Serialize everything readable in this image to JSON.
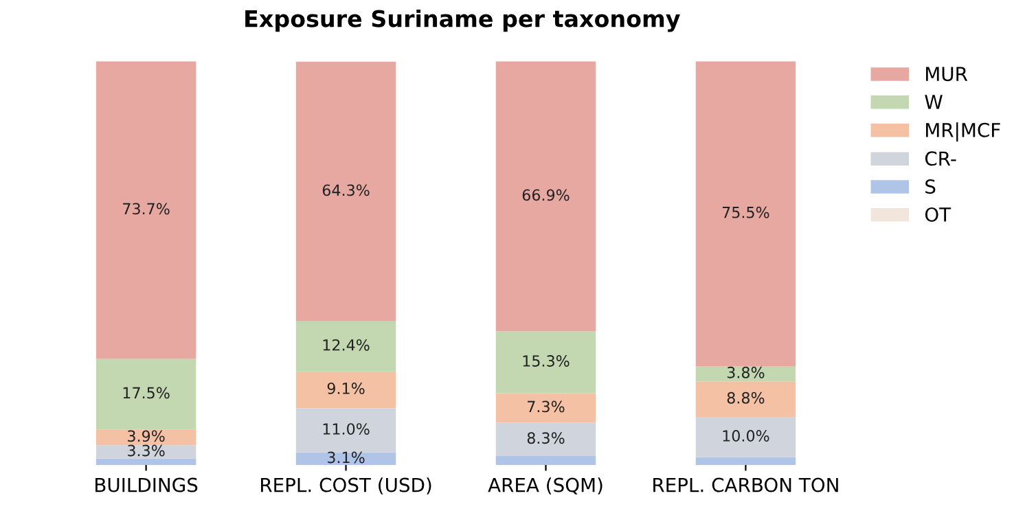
{
  "chart_data": {
    "type": "bar",
    "title": "Exposure Suriname per taxonomy",
    "stacked": true,
    "legend": "top right",
    "grid": false,
    "categories": [
      "BUILDINGS",
      "REPL. COST (USD)",
      "AREA (SQM)",
      "REPL. CARBON TON"
    ],
    "series": [
      {
        "name": "OT",
        "color": "#f2e6dc",
        "values": [
          0,
          0,
          0,
          0
        ],
        "value_labels": [
          null,
          null,
          null,
          null
        ]
      },
      {
        "name": "S",
        "color": "#b0c4e8",
        "values": [
          1.6,
          3.1,
          2.2,
          1.9
        ],
        "value_labels": [
          null,
          "3.1%",
          null,
          null
        ]
      },
      {
        "name": "CR-",
        "color": "#d0d4dc",
        "values": [
          3.3,
          11.0,
          8.3,
          10.0
        ],
        "value_labels": [
          "3.3%",
          "11.0%",
          "8.3%",
          "10.0%"
        ]
      },
      {
        "name": "MR|MCF",
        "color": "#f4c1a4",
        "values": [
          3.9,
          9.1,
          7.3,
          8.8
        ],
        "value_labels": [
          "3.9%",
          "9.1%",
          "7.3%",
          "8.8%"
        ]
      },
      {
        "name": "W",
        "color": "#c3d8b0",
        "values": [
          17.5,
          12.4,
          15.3,
          3.8
        ],
        "value_labels": [
          "17.5%",
          "12.4%",
          "15.3%",
          "3.8%"
        ]
      },
      {
        "name": "MUR",
        "color": "#e8a8a2",
        "values": [
          73.7,
          64.3,
          66.9,
          75.5
        ],
        "value_labels": [
          "73.7%",
          "64.3%",
          "66.9%",
          "75.5%"
        ]
      }
    ]
  }
}
